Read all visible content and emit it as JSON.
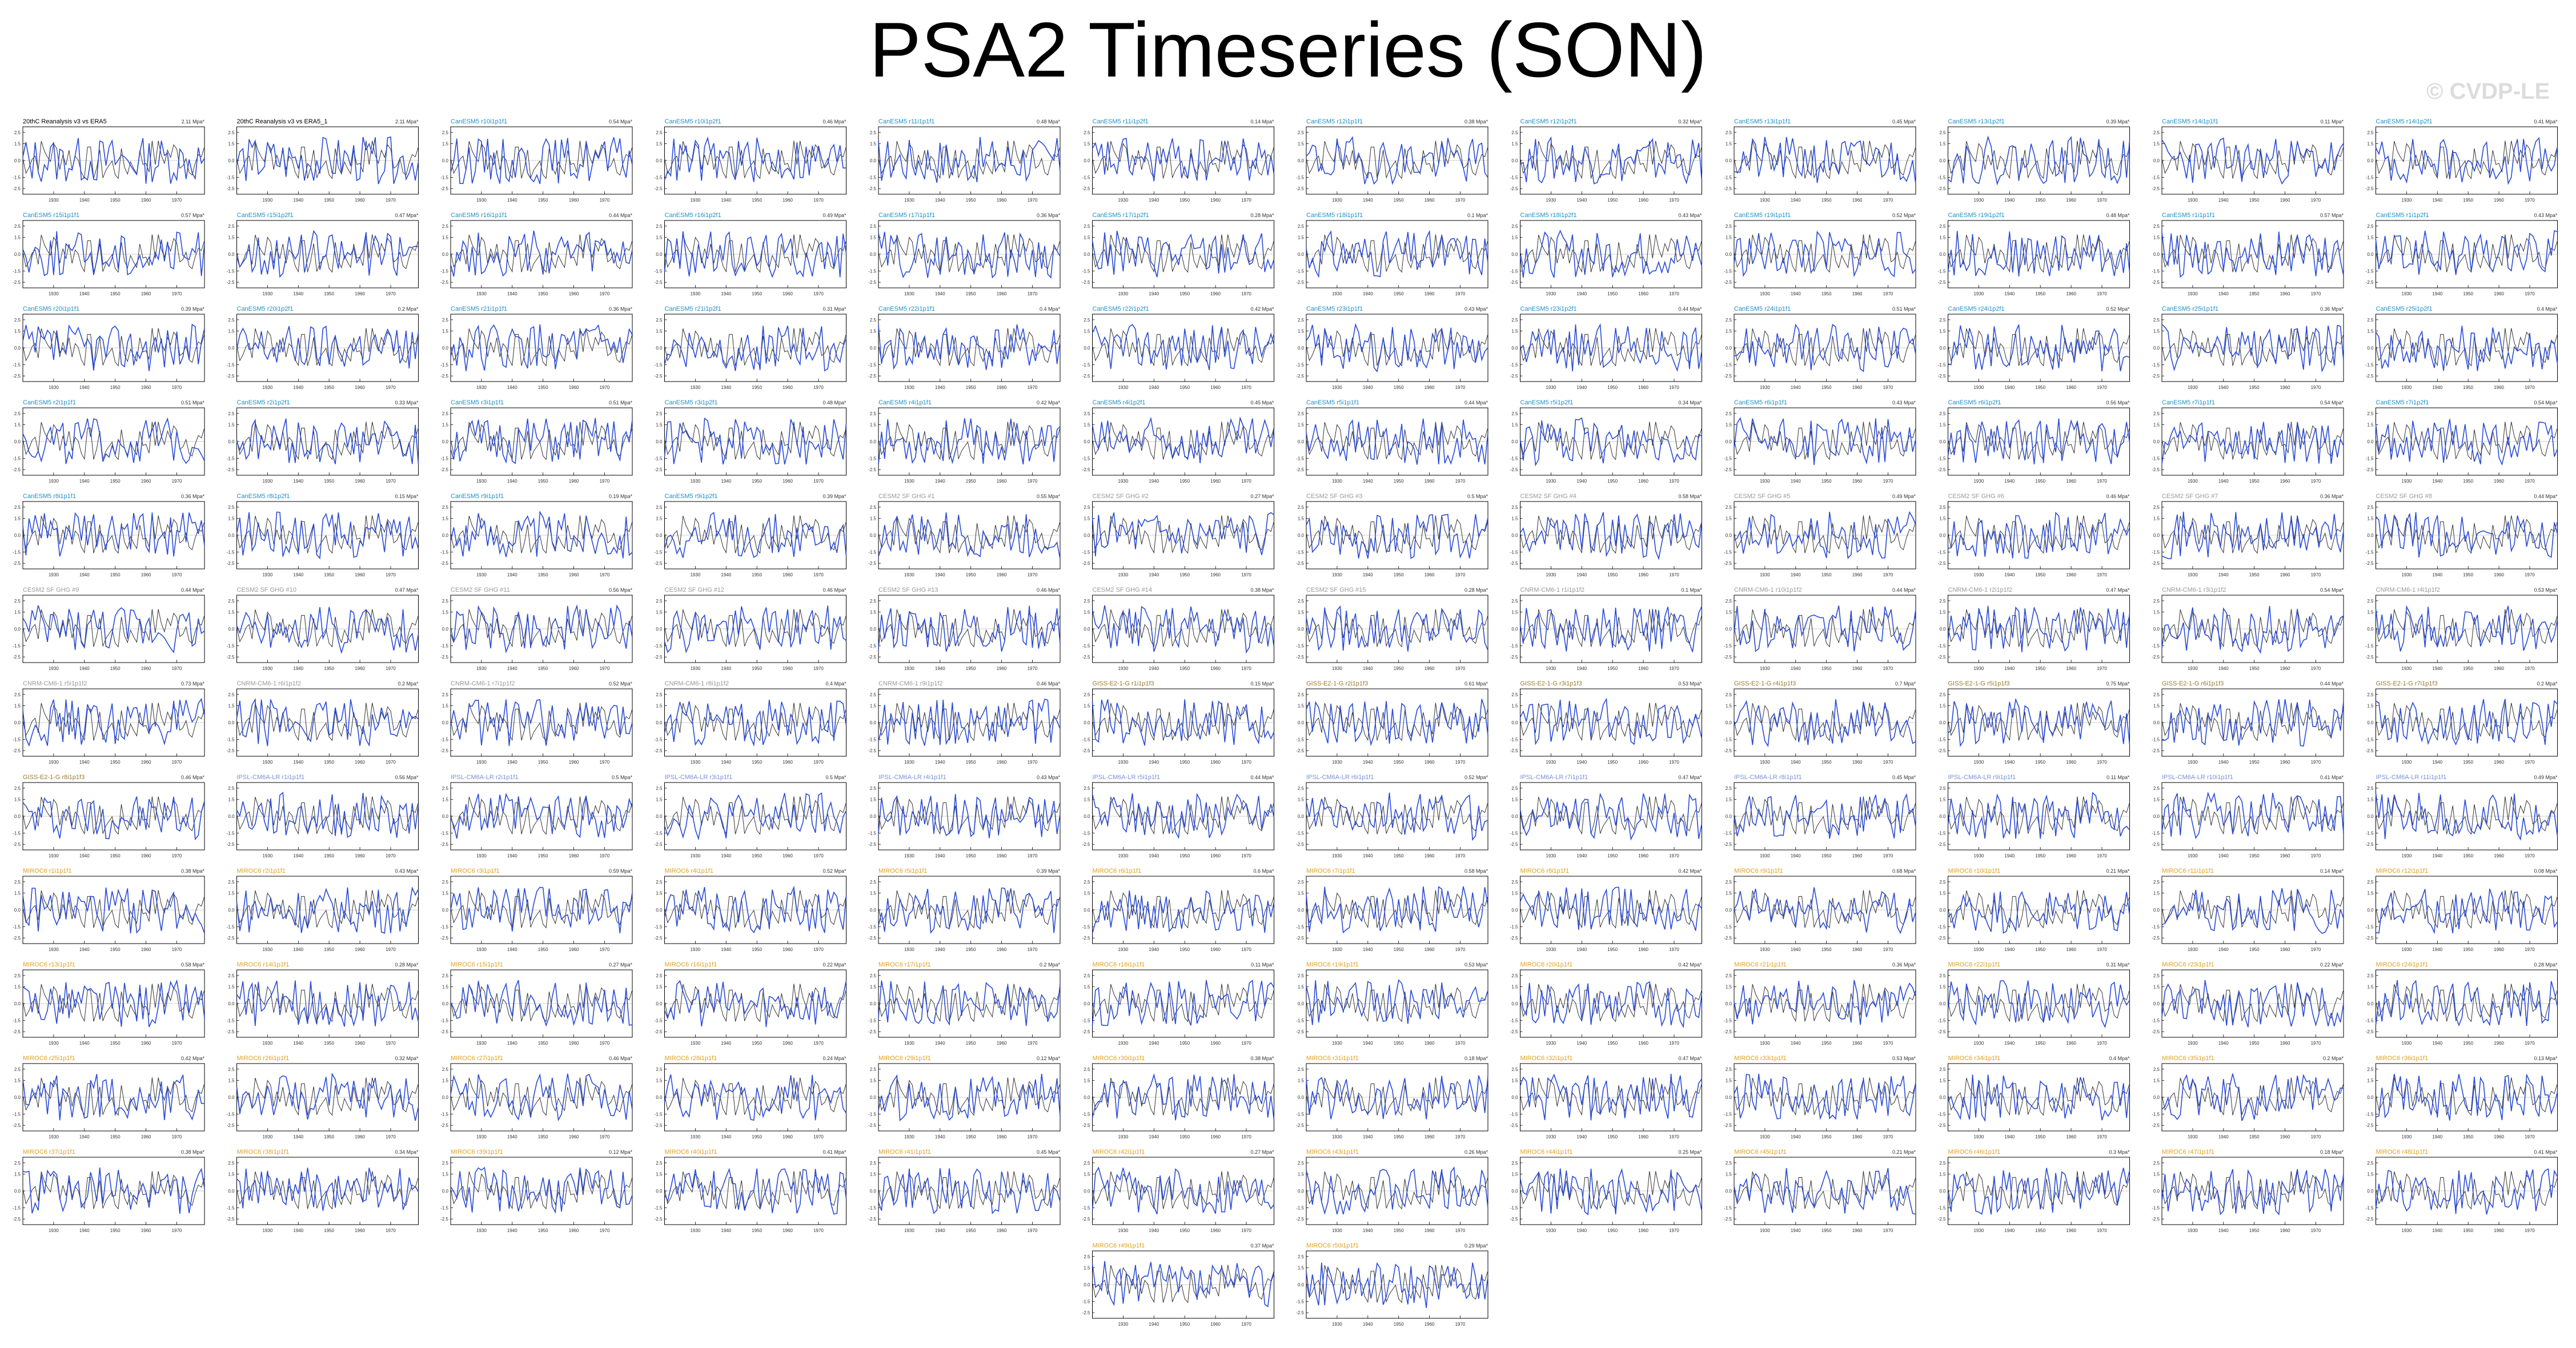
{
  "page": {
    "title": "PSA2 Timeseries (SON)",
    "watermark": "© CVDP-LE"
  },
  "colors": {
    "observations": "#333333",
    "model": "#2a4bd7",
    "title_obs": "#000000",
    "title_cesm1": "#1e90c8",
    "title_cesm2": "#999999",
    "title_gfdl": "#9b7a2e",
    "title_ipsl": "#7b8fd4",
    "title_miroc": "#e0a020"
  },
  "chart_data": {
    "type": "line",
    "layout": "small-multiples",
    "x_tick_labels": [
      "1930",
      "1940",
      "1950",
      "1960",
      "1970"
    ],
    "y_tick_labels": [
      "2.5",
      "1.5",
      "0.0",
      "-1.5",
      "-2.5"
    ],
    "xlim": [
      1920,
      1979
    ],
    "ylim": [
      -3,
      3
    ],
    "grid": false,
    "panels": [
      {
        "title": "20thC Reanalysis v3 vs ERA5",
        "label": "2.11 Mpa*",
        "group": "obs"
      },
      {
        "title": "20thC Reanalysis v3 vs ERA5_1",
        "label": "2.11 Mpa*",
        "group": "obs"
      },
      {
        "title": "CanESM5 r10i1p1f1",
        "label": "0.54 Mpa*",
        "group": "cesm1"
      },
      {
        "title": "CanESM5 r10i1p2f1",
        "label": "0.46 Mpa*",
        "group": "cesm1"
      },
      {
        "title": "CanESM5 r11i1p1f1",
        "label": "0.48 Mpa*",
        "group": "cesm1"
      },
      {
        "title": "CanESM5 r11i1p2f1",
        "label": "0.14 Mpa*",
        "group": "cesm1"
      },
      {
        "title": "CanESM5 r12i1p1f1",
        "label": "0.38 Mpa*",
        "group": "cesm1"
      },
      {
        "title": "CanESM5 r12i1p2f1",
        "label": "0.32 Mpa*",
        "group": "cesm1"
      },
      {
        "title": "CanESM5 r13i1p1f1",
        "label": "0.45 Mpa*",
        "group": "cesm1"
      },
      {
        "title": "CanESM5 r13i1p2f1",
        "label": "0.39 Mpa*",
        "group": "cesm1"
      },
      {
        "title": "CanESM5 r14i1p1f1",
        "label": "0.11 Mpa*",
        "group": "cesm1"
      },
      {
        "title": "CanESM5 r14i1p2f1",
        "label": "0.41 Mpa*",
        "group": "cesm1"
      },
      {
        "title": "CanESM5 r15i1p1f1",
        "label": "0.57 Mpa*",
        "group": "cesm1"
      },
      {
        "title": "CanESM5 r15i1p2f1",
        "label": "0.47 Mpa*",
        "group": "cesm1"
      },
      {
        "title": "CanESM5 r16i1p1f1",
        "label": "0.44 Mpa*",
        "group": "cesm1"
      },
      {
        "title": "CanESM5 r16i1p2f1",
        "label": "0.49 Mpa*",
        "group": "cesm1"
      },
      {
        "title": "CanESM5 r17i1p1f1",
        "label": "0.36 Mpa*",
        "group": "cesm1"
      },
      {
        "title": "CanESM5 r17i1p2f1",
        "label": "0.28 Mpa*",
        "group": "cesm1"
      },
      {
        "title": "CanESM5 r18i1p1f1",
        "label": "0.1 Mpa*",
        "group": "cesm1"
      },
      {
        "title": "CanESM5 r18i1p2f1",
        "label": "0.43 Mpa*",
        "group": "cesm1"
      },
      {
        "title": "CanESM5 r19i1p1f1",
        "label": "0.52 Mpa*",
        "group": "cesm1"
      },
      {
        "title": "CanESM5 r19i1p2f1",
        "label": "0.48 Mpa*",
        "group": "cesm1"
      },
      {
        "title": "CanESM5 r1i1p1f1",
        "label": "0.57 Mpa*",
        "group": "cesm1"
      },
      {
        "title": "CanESM5 r1i1p2f1",
        "label": "0.43 Mpa*",
        "group": "cesm1"
      },
      {
        "title": "CanESM5 r20i1p1f1",
        "label": "0.39 Mpa*",
        "group": "cesm1"
      },
      {
        "title": "CanESM5 r20i1p2f1",
        "label": "0.2 Mpa*",
        "group": "cesm1"
      },
      {
        "title": "CanESM5 r21i1p1f1",
        "label": "0.36 Mpa*",
        "group": "cesm1"
      },
      {
        "title": "CanESM5 r21i1p2f1",
        "label": "0.31 Mpa*",
        "group": "cesm1"
      },
      {
        "title": "CanESM5 r22i1p1f1",
        "label": "0.4 Mpa*",
        "group": "cesm1"
      },
      {
        "title": "CanESM5 r22i1p2f1",
        "label": "0.42 Mpa*",
        "group": "cesm1"
      },
      {
        "title": "CanESM5 r23i1p1f1",
        "label": "0.43 Mpa*",
        "group": "cesm1"
      },
      {
        "title": "CanESM5 r23i1p2f1",
        "label": "0.44 Mpa*",
        "group": "cesm1"
      },
      {
        "title": "CanESM5 r24i1p1f1",
        "label": "0.51 Mpa*",
        "group": "cesm1"
      },
      {
        "title": "CanESM5 r24i1p2f1",
        "label": "0.52 Mpa*",
        "group": "cesm1"
      },
      {
        "title": "CanESM5 r25i1p1f1",
        "label": "0.36 Mpa*",
        "group": "cesm1"
      },
      {
        "title": "CanESM5 r25i1p2f1",
        "label": "0.4 Mpa*",
        "group": "cesm1"
      },
      {
        "title": "CanESM5 r2i1p1f1",
        "label": "0.51 Mpa*",
        "group": "cesm1"
      },
      {
        "title": "CanESM5 r2i1p2f1",
        "label": "0.33 Mpa*",
        "group": "cesm1"
      },
      {
        "title": "CanESM5 r3i1p1f1",
        "label": "0.51 Mpa*",
        "group": "cesm1"
      },
      {
        "title": "CanESM5 r3i1p2f1",
        "label": "0.48 Mpa*",
        "group": "cesm1"
      },
      {
        "title": "CanESM5 r4i1p1f1",
        "label": "0.42 Mpa*",
        "group": "cesm1"
      },
      {
        "title": "CanESM5 r4i1p2f1",
        "label": "0.45 Mpa*",
        "group": "cesm1"
      },
      {
        "title": "CanESM5 r5i1p1f1",
        "label": "0.44 Mpa*",
        "group": "cesm1"
      },
      {
        "title": "CanESM5 r5i1p2f1",
        "label": "0.34 Mpa*",
        "group": "cesm1"
      },
      {
        "title": "CanESM5 r6i1p1f1",
        "label": "0.43 Mpa*",
        "group": "cesm1"
      },
      {
        "title": "CanESM5 r6i1p2f1",
        "label": "0.56 Mpa*",
        "group": "cesm1"
      },
      {
        "title": "CanESM5 r7i1p1f1",
        "label": "0.54 Mpa*",
        "group": "cesm1"
      },
      {
        "title": "CanESM5 r7i1p2f1",
        "label": "0.54 Mpa*",
        "group": "cesm1"
      },
      {
        "title": "CanESM5 r8i1p1f1",
        "label": "0.36 Mpa*",
        "group": "cesm1"
      },
      {
        "title": "CanESM5 r8i1p2f1",
        "label": "0.15 Mpa*",
        "group": "cesm1"
      },
      {
        "title": "CanESM5 r9i1p1f1",
        "label": "0.19 Mpa*",
        "group": "cesm1"
      },
      {
        "title": "CanESM5 r9i1p2f1",
        "label": "0.39 Mpa*",
        "group": "cesm1"
      },
      {
        "title": "CESM2 SF GHG #1",
        "label": "0.55 Mpa*",
        "group": "cesm2"
      },
      {
        "title": "CESM2 SF GHG #2",
        "label": "0.27 Mpa*",
        "group": "cesm2"
      },
      {
        "title": "CESM2 SF GHG #3",
        "label": "0.5 Mpa*",
        "group": "cesm2"
      },
      {
        "title": "CESM2 SF GHG #4",
        "label": "0.58 Mpa*",
        "group": "cesm2"
      },
      {
        "title": "CESM2 SF GHG #5",
        "label": "0.49 Mpa*",
        "group": "cesm2"
      },
      {
        "title": "CESM2 SF GHG #6",
        "label": "0.46 Mpa*",
        "group": "cesm2"
      },
      {
        "title": "CESM2 SF GHG #7",
        "label": "0.36 Mpa*",
        "group": "cesm2"
      },
      {
        "title": "CESM2 SF GHG #8",
        "label": "0.44 Mpa*",
        "group": "cesm2"
      },
      {
        "title": "CESM2 SF GHG #9",
        "label": "0.44 Mpa*",
        "group": "cesm2"
      },
      {
        "title": "CESM2 SF GHG #10",
        "label": "0.47 Mpa*",
        "group": "cesm2"
      },
      {
        "title": "CESM2 SF GHG #11",
        "label": "0.56 Mpa*",
        "group": "cesm2"
      },
      {
        "title": "CESM2 SF GHG #12",
        "label": "0.46 Mpa*",
        "group": "cesm2"
      },
      {
        "title": "CESM2 SF GHG #13",
        "label": "0.46 Mpa*",
        "group": "cesm2"
      },
      {
        "title": "CESM2 SF GHG #14",
        "label": "0.38 Mpa*",
        "group": "cesm2"
      },
      {
        "title": "CESM2 SF GHG #15",
        "label": "0.28 Mpa*",
        "group": "cesm2"
      },
      {
        "title": "CNRM-CM6-1 r1i1p1f2",
        "label": "0.1 Mpa*",
        "group": "cesm2"
      },
      {
        "title": "CNRM-CM6-1 r10i1p1f2",
        "label": "0.44 Mpa*",
        "group": "cesm2"
      },
      {
        "title": "CNRM-CM6-1 r2i1p1f2",
        "label": "0.47 Mpa*",
        "group": "cesm2"
      },
      {
        "title": "CNRM-CM6-1 r3i1p1f2",
        "label": "0.54 Mpa*",
        "group": "cesm2"
      },
      {
        "title": "CNRM-CM6-1 r4i1p1f2",
        "label": "0.53 Mpa*",
        "group": "cesm2"
      },
      {
        "title": "CNRM-CM6-1 r5i1p1f2",
        "label": "0.73 Mpa*",
        "group": "cesm2"
      },
      {
        "title": "CNRM-CM6-1 r6i1p1f2",
        "label": "0.2 Mpa*",
        "group": "cesm2"
      },
      {
        "title": "CNRM-CM6-1 r7i1p1f2",
        "label": "0.52 Mpa*",
        "group": "cesm2"
      },
      {
        "title": "CNRM-CM6-1 r8i1p1f2",
        "label": "0.4 Mpa*",
        "group": "cesm2"
      },
      {
        "title": "CNRM-CM6-1 r9i1p1f2",
        "label": "0.46 Mpa*",
        "group": "cesm2"
      },
      {
        "title": "GISS-E2-1-G r1i1p1f3",
        "label": "0.15 Mpa*",
        "group": "gfdl"
      },
      {
        "title": "GISS-E2-1-G r2i1p1f3",
        "label": "0.61 Mpa*",
        "group": "gfdl"
      },
      {
        "title": "GISS-E2-1-G r3i1p1f3",
        "label": "0.53 Mpa*",
        "group": "gfdl"
      },
      {
        "title": "GISS-E2-1-G r4i1p1f3",
        "label": "0.7 Mpa*",
        "group": "gfdl"
      },
      {
        "title": "GISS-E2-1-G r5i1p1f3",
        "label": "0.75 Mpa*",
        "group": "gfdl"
      },
      {
        "title": "GISS-E2-1-G r6i1p1f3",
        "label": "0.44 Mpa*",
        "group": "gfdl"
      },
      {
        "title": "GISS-E2-1-G r7i1p1f3",
        "label": "0.2 Mpa*",
        "group": "gfdl"
      },
      {
        "title": "GISS-E2-1-G r8i1p1f3",
        "label": "0.46 Mpa*",
        "group": "gfdl"
      },
      {
        "title": "IPSL-CM6A-LR r1i1p1f1",
        "label": "0.56 Mpa*",
        "group": "ipsl"
      },
      {
        "title": "IPSL-CM6A-LR r2i1p1f1",
        "label": "0.5 Mpa*",
        "group": "ipsl"
      },
      {
        "title": "IPSL-CM6A-LR r3i1p1f1",
        "label": "0.5 Mpa*",
        "group": "ipsl"
      },
      {
        "title": "IPSL-CM6A-LR r4i1p1f1",
        "label": "0.43 Mpa*",
        "group": "ipsl"
      },
      {
        "title": "IPSL-CM6A-LR r5i1p1f1",
        "label": "0.44 Mpa*",
        "group": "ipsl"
      },
      {
        "title": "IPSL-CM6A-LR r6i1p1f1",
        "label": "0.52 Mpa*",
        "group": "ipsl"
      },
      {
        "title": "IPSL-CM6A-LR r7i1p1f1",
        "label": "0.47 Mpa*",
        "group": "ipsl"
      },
      {
        "title": "IPSL-CM6A-LR r8i1p1f1",
        "label": "0.45 Mpa*",
        "group": "ipsl"
      },
      {
        "title": "IPSL-CM6A-LR r9i1p1f1",
        "label": "0.11 Mpa*",
        "group": "ipsl"
      },
      {
        "title": "IPSL-CM6A-LR r10i1p1f1",
        "label": "0.41 Mpa*",
        "group": "ipsl"
      },
      {
        "title": "IPSL-CM6A-LR r11i1p1f1",
        "label": "0.49 Mpa*",
        "group": "ipsl"
      },
      {
        "title": "MIROC6 r1i1p1f1",
        "label": "0.38 Mpa*",
        "group": "miroc"
      },
      {
        "title": "MIROC6 r2i1p1f1",
        "label": "0.43 Mpa*",
        "group": "miroc"
      },
      {
        "title": "MIROC6 r3i1p1f1",
        "label": "0.59 Mpa*",
        "group": "miroc"
      },
      {
        "title": "MIROC6 r4i1p1f1",
        "label": "0.52 Mpa*",
        "group": "miroc"
      },
      {
        "title": "MIROC6 r5i1p1f1",
        "label": "0.39 Mpa*",
        "group": "miroc"
      },
      {
        "title": "MIROC6 r6i1p1f1",
        "label": "0.6 Mpa*",
        "group": "miroc"
      },
      {
        "title": "MIROC6 r7i1p1f1",
        "label": "0.58 Mpa*",
        "group": "miroc"
      },
      {
        "title": "MIROC6 r8i1p1f1",
        "label": "0.42 Mpa*",
        "group": "miroc"
      },
      {
        "title": "MIROC6 r9i1p1f1",
        "label": "0.68 Mpa*",
        "group": "miroc"
      },
      {
        "title": "MIROC6 r10i1p1f1",
        "label": "0.21 Mpa*",
        "group": "miroc"
      },
      {
        "title": "MIROC6 r11i1p1f1",
        "label": "0.14 Mpa*",
        "group": "miroc"
      },
      {
        "title": "MIROC6 r12i1p1f1",
        "label": "0.08 Mpa*",
        "group": "miroc"
      },
      {
        "title": "MIROC6 r13i1p1f1",
        "label": "0.58 Mpa*",
        "group": "miroc"
      },
      {
        "title": "MIROC6 r14i1p1f1",
        "label": "0.28 Mpa*",
        "group": "miroc"
      },
      {
        "title": "MIROC6 r15i1p1f1",
        "label": "0.27 Mpa*",
        "group": "miroc"
      },
      {
        "title": "MIROC6 r16i1p1f1",
        "label": "0.22 Mpa*",
        "group": "miroc"
      },
      {
        "title": "MIROC6 r17i1p1f1",
        "label": "0.2 Mpa*",
        "group": "miroc"
      },
      {
        "title": "MIROC6 r18i1p1f1",
        "label": "0.11 Mpa*",
        "group": "miroc"
      },
      {
        "title": "MIROC6 r19i1p1f1",
        "label": "0.53 Mpa*",
        "group": "miroc"
      },
      {
        "title": "MIROC6 r20i1p1f1",
        "label": "0.42 Mpa*",
        "group": "miroc"
      },
      {
        "title": "MIROC6 r21i1p1f1",
        "label": "0.36 Mpa*",
        "group": "miroc"
      },
      {
        "title": "MIROC6 r22i1p1f1",
        "label": "0.31 Mpa*",
        "group": "miroc"
      },
      {
        "title": "MIROC6 r23i1p1f1",
        "label": "0.22 Mpa*",
        "group": "miroc"
      },
      {
        "title": "MIROC6 r24i1p1f1",
        "label": "0.28 Mpa*",
        "group": "miroc"
      },
      {
        "title": "MIROC6 r25i1p1f1",
        "label": "0.42 Mpa*",
        "group": "miroc"
      },
      {
        "title": "MIROC6 r26i1p1f1",
        "label": "0.32 Mpa*",
        "group": "miroc"
      },
      {
        "title": "MIROC6 r27i1p1f1",
        "label": "0.46 Mpa*",
        "group": "miroc"
      },
      {
        "title": "MIROC6 r28i1p1f1",
        "label": "0.24 Mpa*",
        "group": "miroc"
      },
      {
        "title": "MIROC6 r29i1p1f1",
        "label": "0.12 Mpa*",
        "group": "miroc"
      },
      {
        "title": "MIROC6 r30i1p1f1",
        "label": "0.38 Mpa*",
        "group": "miroc"
      },
      {
        "title": "MIROC6 r31i1p1f1",
        "label": "0.18 Mpa*",
        "group": "miroc"
      },
      {
        "title": "MIROC6 r32i1p1f1",
        "label": "0.47 Mpa*",
        "group": "miroc"
      },
      {
        "title": "MIROC6 r33i1p1f1",
        "label": "0.53 Mpa*",
        "group": "miroc"
      },
      {
        "title": "MIROC6 r34i1p1f1",
        "label": "0.4 Mpa*",
        "group": "miroc"
      },
      {
        "title": "MIROC6 r35i1p1f1",
        "label": "0.2 Mpa*",
        "group": "miroc"
      },
      {
        "title": "MIROC6 r36i1p1f1",
        "label": "0.13 Mpa*",
        "group": "miroc"
      },
      {
        "title": "MIROC6 r37i1p1f1",
        "label": "0.38 Mpa*",
        "group": "miroc"
      },
      {
        "title": "MIROC6 r38i1p1f1",
        "label": "0.34 Mpa*",
        "group": "miroc"
      },
      {
        "title": "MIROC6 r39i1p1f1",
        "label": "0.12 Mpa*",
        "group": "miroc"
      },
      {
        "title": "MIROC6 r40i1p1f1",
        "label": "0.41 Mpa*",
        "group": "miroc"
      },
      {
        "title": "MIROC6 r41i1p1f1",
        "label": "0.45 Mpa*",
        "group": "miroc"
      },
      {
        "title": "MIROC6 r42i1p1f1",
        "label": "0.27 Mpa*",
        "group": "miroc"
      },
      {
        "title": "MIROC6 r43i1p1f1",
        "label": "0.26 Mpa*",
        "group": "miroc"
      },
      {
        "title": "MIROC6 r44i1p1f1",
        "label": "0.25 Mpa*",
        "group": "miroc"
      },
      {
        "title": "MIROC6 r45i1p1f1",
        "label": "0.21 Mpa*",
        "group": "miroc"
      },
      {
        "title": "MIROC6 r46i1p1f1",
        "label": "0.3 Mpa*",
        "group": "miroc"
      },
      {
        "title": "MIROC6 r47i1p1f1",
        "label": "0.18 Mpa*",
        "group": "miroc"
      },
      {
        "title": "MIROC6 r48i1p1f1",
        "label": "0.41 Mpa*",
        "group": "miroc"
      },
      {
        "title": "MIROC6 r49i1p1f1",
        "label": "0.37 Mpa*",
        "group": "miroc"
      },
      {
        "title": "MIROC6 r50i1p1f1",
        "label": "0.29 Mpa*",
        "group": "miroc"
      }
    ]
  }
}
